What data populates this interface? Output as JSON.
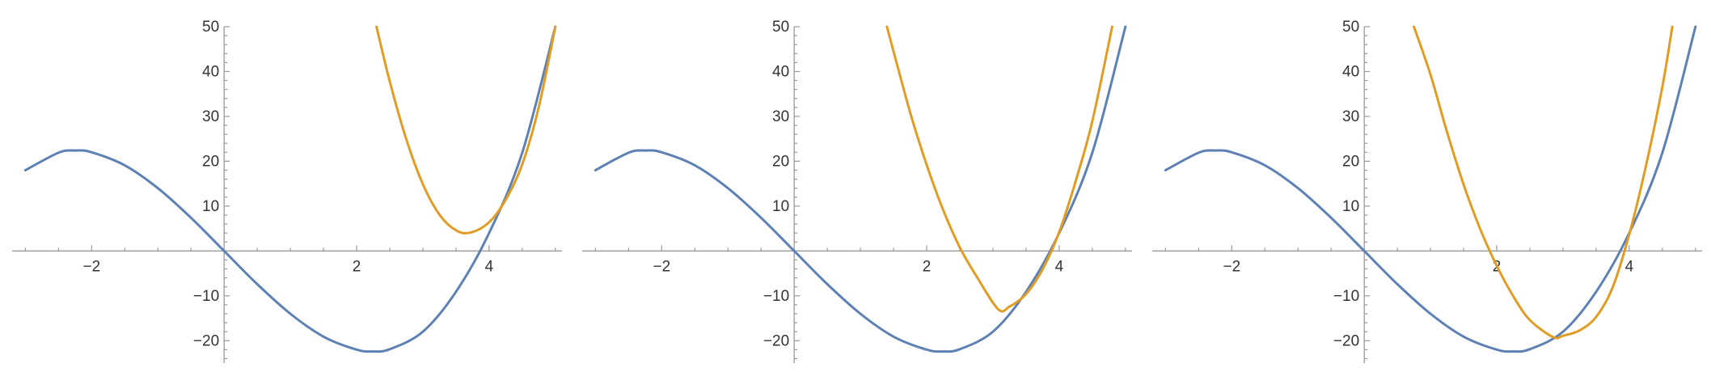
{
  "chart_data": [
    {
      "type": "line",
      "title": "",
      "xlabel": "",
      "ylabel": "",
      "xlim": [
        -3.2,
        5.1
      ],
      "ylim": [
        -25,
        50
      ],
      "x_ticks": [
        -2,
        2,
        4
      ],
      "x_tick_labels": [
        "−2",
        "2",
        "4"
      ],
      "y_ticks": [
        -20,
        -10,
        10,
        20,
        30,
        40,
        50
      ],
      "y_tick_labels": [
        "−20",
        "−10",
        "10",
        "20",
        "30",
        "40",
        "50"
      ],
      "grid": false,
      "legend": "none",
      "series": [
        {
          "color": "#5e81b5",
          "x": [
            -3,
            -2.5,
            -2.24,
            -2,
            -1.5,
            -1,
            -0.5,
            0,
            0.5,
            1,
            1.5,
            2,
            2.24,
            2.5,
            3,
            3.5,
            4,
            4.5,
            5
          ],
          "y": [
            18,
            21.9,
            22.4,
            22,
            19.1,
            14,
            7.4,
            0,
            -7.4,
            -14,
            -19.1,
            -22,
            -22.4,
            -21.9,
            -18,
            -9.1,
            4,
            21.9,
            50
          ]
        },
        {
          "color": "#e19c24",
          "x": [
            2.3,
            2.5,
            2.75,
            3,
            3.25,
            3.5,
            3.72,
            4,
            4.25,
            4.5,
            4.75,
            5
          ],
          "y": [
            50,
            37.8,
            24.9,
            14.9,
            8.1,
            4.6,
            4.1,
            6.4,
            11.4,
            19.3,
            32.1,
            50
          ]
        }
      ]
    },
    {
      "type": "line",
      "title": "",
      "xlabel": "",
      "ylabel": "",
      "xlim": [
        -3.2,
        5.1
      ],
      "ylim": [
        -25,
        50
      ],
      "x_ticks": [
        -2,
        2,
        4
      ],
      "x_tick_labels": [
        "−2",
        "2",
        "4"
      ],
      "y_ticks": [
        -20,
        -10,
        10,
        20,
        30,
        40,
        50
      ],
      "y_tick_labels": [
        "−20",
        "−10",
        "10",
        "20",
        "30",
        "40",
        "50"
      ],
      "grid": false,
      "legend": "none",
      "series": [
        {
          "color": "#5e81b5",
          "x": [
            -3,
            -2.5,
            -2.24,
            -2,
            -1.5,
            -1,
            -0.5,
            0,
            0.5,
            1,
            1.5,
            2,
            2.24,
            2.5,
            3,
            3.5,
            4,
            4.5,
            5
          ],
          "y": [
            18,
            21.9,
            22.4,
            22,
            19.1,
            14,
            7.4,
            0,
            -7.4,
            -14,
            -19.1,
            -22,
            -22.4,
            -21.9,
            -18,
            -9.1,
            4,
            21.9,
            50
          ]
        },
        {
          "color": "#e19c24",
          "x": [
            1.4,
            1.75,
            2,
            2.25,
            2.5,
            2.75,
            3.08,
            3.25,
            3.5,
            3.75,
            4,
            4.25,
            4.5,
            4.8
          ],
          "y": [
            50,
            30.9,
            19.2,
            9.1,
            0.8,
            -5.6,
            -13,
            -12.4,
            -9.6,
            -4.1,
            4.2,
            15.6,
            28.9,
            50
          ]
        }
      ]
    },
    {
      "type": "line",
      "title": "",
      "xlabel": "",
      "ylabel": "",
      "xlim": [
        -3.2,
        5.1
      ],
      "ylim": [
        -25,
        50
      ],
      "x_ticks": [
        -2,
        2,
        4
      ],
      "x_tick_labels": [
        "−2",
        "2",
        "4"
      ],
      "y_ticks": [
        -20,
        -10,
        10,
        20,
        30,
        40,
        50
      ],
      "y_tick_labels": [
        "−20",
        "−10",
        "10",
        "20",
        "30",
        "40",
        "50"
      ],
      "grid": false,
      "legend": "none",
      "series": [
        {
          "color": "#5e81b5",
          "x": [
            -3,
            -2.5,
            -2.24,
            -2,
            -1.5,
            -1,
            -0.5,
            0,
            0.5,
            1,
            1.5,
            2,
            2.24,
            2.5,
            3,
            3.5,
            4,
            4.5,
            5
          ],
          "y": [
            18,
            21.9,
            22.4,
            22,
            19.1,
            14,
            7.4,
            0,
            -7.4,
            -14,
            -19.1,
            -22,
            -22.4,
            -21.9,
            -18,
            -9.1,
            4,
            21.9,
            50
          ]
        },
        {
          "color": "#e19c24",
          "x": [
            0.75,
            1,
            1.25,
            1.5,
            1.75,
            2,
            2.25,
            2.5,
            2.85,
            3,
            3.25,
            3.5,
            3.75,
            4,
            4.25,
            4.5,
            4.65
          ],
          "y": [
            50,
            39.3,
            26.5,
            14.8,
            4.9,
            -3.3,
            -10.1,
            -15.4,
            -19.2,
            -18.9,
            -17.7,
            -14.7,
            -8.1,
            3.7,
            18.8,
            36.6,
            50
          ]
        }
      ]
    }
  ]
}
